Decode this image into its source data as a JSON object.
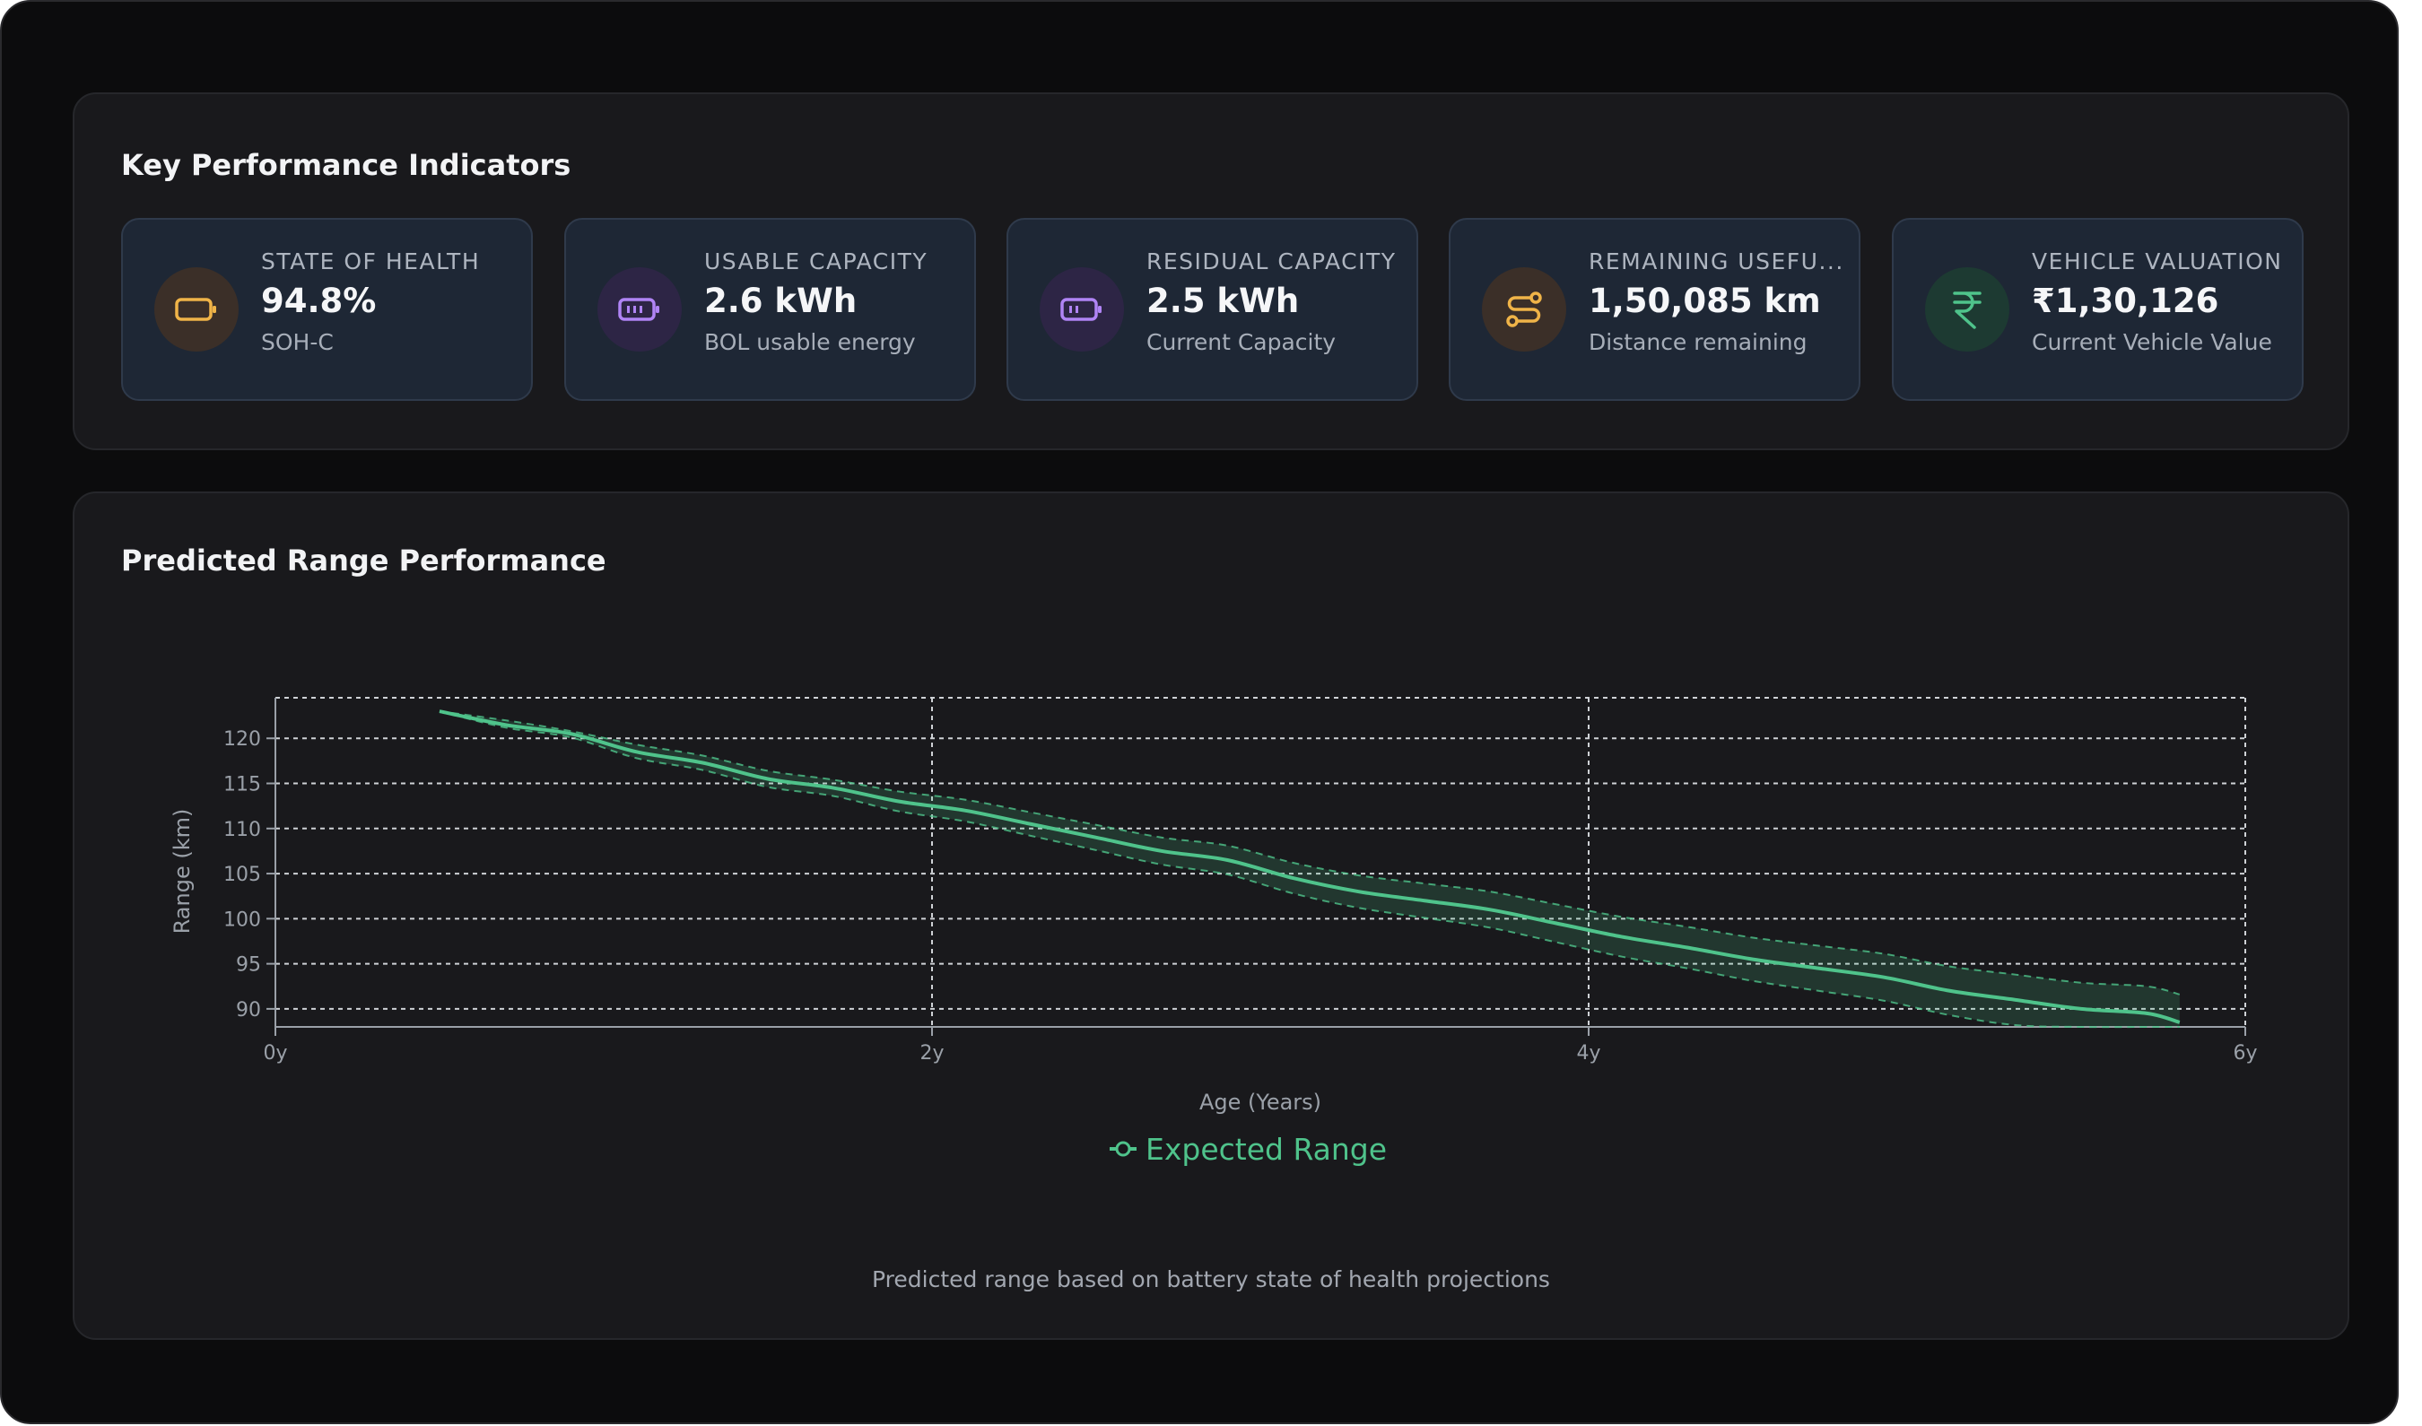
{
  "kpi_section": {
    "title": "Key Performance Indicators",
    "cards": [
      {
        "label": "STATE OF HEALTH",
        "value": "94.8%",
        "sub": "SOH-C",
        "icon": "battery-low-icon",
        "color": "#f0b448",
        "icon_bg": "#3b2f28"
      },
      {
        "label": "USABLE CAPACITY",
        "value": "2.6 kWh",
        "sub": "BOL usable energy",
        "icon": "battery-full-icon",
        "color": "#b084f5",
        "icon_bg": "#2d2545"
      },
      {
        "label": "RESIDUAL CAPACITY",
        "value": "2.5 kWh",
        "sub": "Current Capacity",
        "icon": "battery-medium-icon",
        "color": "#b084f5",
        "icon_bg": "#2d2545"
      },
      {
        "label": "REMAINING USEFU...",
        "value": "1,50,085 km",
        "sub": "Distance remaining",
        "icon": "route-icon",
        "color": "#f0b448",
        "icon_bg": "#3b2f28"
      },
      {
        "label": "VEHICLE VALUATION",
        "value": "₹1,30,126",
        "sub": "Current Vehicle Value",
        "icon": "rupee-icon",
        "color": "#4fc38b",
        "icon_bg": "#1d3a32"
      }
    ]
  },
  "chart_section": {
    "title": "Predicted Range Performance",
    "caption": "Predicted range based on battery state of health projections"
  },
  "chart_data": {
    "type": "line",
    "xlabel": "Age (Years)",
    "ylabel": "Range (km)",
    "x_ticks": [
      "0y",
      "2y",
      "4y",
      "6y"
    ],
    "y_ticks": [
      90,
      95,
      100,
      105,
      110,
      115,
      120
    ],
    "xlim": [
      0,
      6
    ],
    "ylim": [
      88,
      125
    ],
    "grid": true,
    "legend": "bottom-center",
    "series": [
      {
        "name": "Expected Range",
        "color": "#4fc38b",
        "x": [
          0.5,
          0.7,
          0.9,
          1.1,
          1.3,
          1.5,
          1.7,
          1.9,
          2.1,
          2.3,
          2.5,
          2.7,
          2.9,
          3.1,
          3.3,
          3.5,
          3.7,
          3.9,
          4.1,
          4.3,
          4.5,
          4.7,
          4.9,
          5.1,
          5.3,
          5.5,
          5.7,
          5.8
        ],
        "y": [
          123,
          121.5,
          120.5,
          118.5,
          117.3,
          115.5,
          114.5,
          113,
          112,
          110.5,
          109,
          107.5,
          106.5,
          104.5,
          103,
          102,
          101,
          99.5,
          98,
          96.8,
          95.5,
          94.5,
          93.5,
          92,
          91,
          90,
          89.5,
          88.5
        ],
        "band_upper": [
          123,
          122,
          120.8,
          119.3,
          118.1,
          116.4,
          115.4,
          114.1,
          113.2,
          111.8,
          110.4,
          109.0,
          108.1,
          106.2,
          104.8,
          103.9,
          103.0,
          101.6,
          100.2,
          99.1,
          97.9,
          97.0,
          96.1,
          94.7,
          93.8,
          92.9,
          92.5,
          91.6
        ],
        "band_lower": [
          123,
          121.2,
          120.1,
          117.8,
          116.5,
          114.6,
          113.6,
          111.9,
          110.8,
          109.2,
          107.6,
          106.0,
          104.9,
          102.8,
          101.2,
          100.1,
          99.0,
          97.4,
          95.8,
          94.5,
          93.1,
          92.0,
          90.9,
          89.3,
          88.2,
          88.0,
          88.0,
          88.0
        ]
      }
    ]
  }
}
